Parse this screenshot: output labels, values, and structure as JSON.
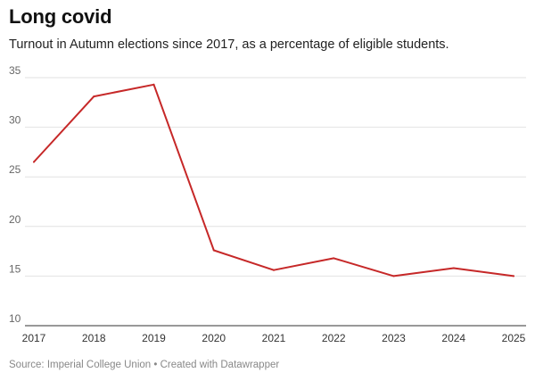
{
  "header": {
    "title": "Long covid",
    "subtitle": "Turnout in Autumn elections since 2017, as a percentage of eligible students."
  },
  "footer": {
    "source": "Source: Imperial College Union",
    "separator": "•",
    "credit": "Created with Datawrapper"
  },
  "colors": {
    "line": "#c62828",
    "grid": "#e2e2e2",
    "axis": "#333333"
  },
  "chart_data": {
    "type": "line",
    "title": "Long covid",
    "subtitle": "Turnout in Autumn elections since 2017, as a percentage of eligible students.",
    "xlabel": "",
    "ylabel": "",
    "x": [
      "2017",
      "2018",
      "2019",
      "2020",
      "2021",
      "2022",
      "2023",
      "2024",
      "2025"
    ],
    "series": [
      {
        "values": [
          26.5,
          33.1,
          34.3,
          17.6,
          15.6,
          16.8,
          15.0,
          15.8,
          15.0
        ]
      }
    ],
    "ylim": [
      10,
      35
    ],
    "yticks": [
      10,
      15,
      20,
      25,
      30,
      35
    ],
    "grid": true,
    "legend": "none"
  }
}
